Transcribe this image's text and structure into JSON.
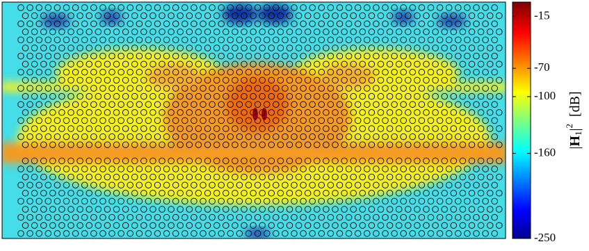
{
  "chart_data": {
    "type": "field-map",
    "colorbar": {
      "clim": [
        -250,
        0
      ],
      "ticks": [
        -15,
        -70,
        -100,
        -160,
        -250
      ],
      "colormap": "jet"
    },
    "colorbar_label": {
      "open": "|",
      "symbol": "H",
      "sub": "1",
      "close": "|",
      "sup": "2",
      "unit": "[dB]"
    }
  }
}
